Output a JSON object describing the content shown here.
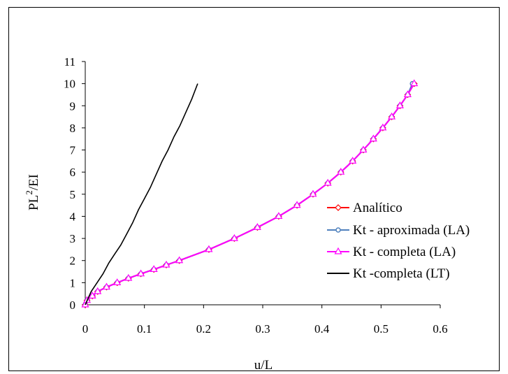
{
  "chart_data": {
    "type": "line",
    "title": "",
    "xlabel": "u/L",
    "ylabel_main": "PL",
    "ylabel_sup": "2",
    "ylabel_tail": "/EI",
    "xlim": [
      0,
      0.6
    ],
    "ylim": [
      0,
      11
    ],
    "x_ticks": [
      "0",
      "0.1",
      "0.2",
      "0.3",
      "0.4",
      "0.5",
      "0.6"
    ],
    "y_ticks": [
      "0",
      "1",
      "2",
      "3",
      "4",
      "5",
      "6",
      "7",
      "8",
      "9",
      "10",
      "11"
    ],
    "grid": false,
    "legend_position": "right",
    "series": [
      {
        "name": "Analítico",
        "color": "#ff0000",
        "marker": "diamond",
        "x": [
          0,
          0.003,
          0.012,
          0.021,
          0.036,
          0.054,
          0.073,
          0.094,
          0.116,
          0.137,
          0.159,
          0.209,
          0.252,
          0.291,
          0.327,
          0.358,
          0.385,
          0.41,
          0.432,
          0.452,
          0.47,
          0.487,
          0.503,
          0.518,
          0.532,
          0.545,
          0.556
        ],
        "y": [
          0,
          0.2,
          0.4,
          0.6,
          0.8,
          1.0,
          1.2,
          1.4,
          1.6,
          1.8,
          2.0,
          2.5,
          3.0,
          3.5,
          4.0,
          4.5,
          5.0,
          5.5,
          6.0,
          6.5,
          7.0,
          7.5,
          8.0,
          8.5,
          9.0,
          9.5,
          10.0
        ]
      },
      {
        "name": "Kt - aproximada (LA)",
        "color": "#4f81bd",
        "marker": "circle",
        "x": [
          0,
          0.003,
          0.012,
          0.021,
          0.036,
          0.054,
          0.073,
          0.094,
          0.116,
          0.137,
          0.159,
          0.209,
          0.252,
          0.291,
          0.327,
          0.358,
          0.385,
          0.41,
          0.432,
          0.452,
          0.47,
          0.487,
          0.503,
          0.518,
          0.532,
          0.545,
          0.553
        ],
        "y": [
          0,
          0.2,
          0.4,
          0.6,
          0.8,
          1.0,
          1.2,
          1.4,
          1.6,
          1.8,
          2.0,
          2.5,
          3.0,
          3.5,
          4.0,
          4.5,
          5.0,
          5.5,
          6.0,
          6.5,
          7.0,
          7.5,
          8.0,
          8.5,
          9.0,
          9.5,
          10.0
        ]
      },
      {
        "name": "Kt - completa (LA)",
        "color": "#ff00ff",
        "marker": "triangle",
        "x": [
          0,
          0.003,
          0.012,
          0.021,
          0.036,
          0.054,
          0.073,
          0.094,
          0.116,
          0.137,
          0.159,
          0.209,
          0.252,
          0.291,
          0.327,
          0.358,
          0.385,
          0.41,
          0.432,
          0.452,
          0.47,
          0.487,
          0.503,
          0.518,
          0.532,
          0.545,
          0.556
        ],
        "y": [
          0,
          0.2,
          0.4,
          0.6,
          0.8,
          1.0,
          1.2,
          1.4,
          1.6,
          1.8,
          2.0,
          2.5,
          3.0,
          3.5,
          4.0,
          4.5,
          5.0,
          5.5,
          6.0,
          6.5,
          7.0,
          7.5,
          8.0,
          8.5,
          9.0,
          9.5,
          10.0
        ]
      },
      {
        "name": "Kt -completa (LT)",
        "color": "#000000",
        "marker": "none",
        "x": [
          0,
          0.005,
          0.01,
          0.02,
          0.03,
          0.04,
          0.05,
          0.06,
          0.07,
          0.08,
          0.09,
          0.1,
          0.11,
          0.12,
          0.13,
          0.14,
          0.15,
          0.16,
          0.17,
          0.18,
          0.19
        ],
        "y": [
          0,
          0.3,
          0.6,
          1.0,
          1.4,
          1.9,
          2.3,
          2.7,
          3.2,
          3.7,
          4.3,
          4.8,
          5.3,
          5.9,
          6.5,
          7.0,
          7.6,
          8.1,
          8.7,
          9.3,
          10.0
        ]
      }
    ]
  }
}
